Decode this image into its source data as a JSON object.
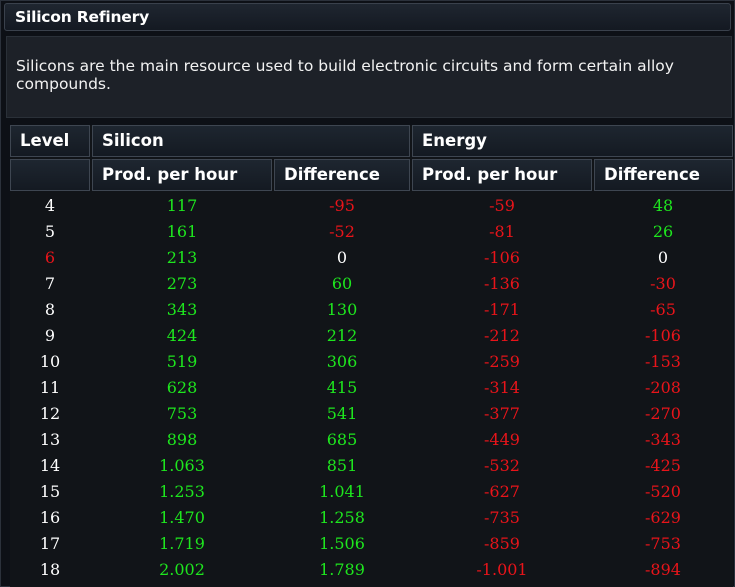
{
  "window": {
    "title": "Silicon Refinery"
  },
  "description": "Silicons are the main resource used to build electronic circuits and form certain alloy compounds.",
  "colors": {
    "positive": "#1ee61e",
    "negative": "#e8141a",
    "neutral": "#ffffff",
    "current_level": "#e8141a"
  },
  "table": {
    "group_headers": {
      "level": "Level",
      "silicon": "Silicon",
      "energy": "Energy"
    },
    "sub_headers": {
      "silicon_prod": "Prod. per hour",
      "silicon_diff": "Difference",
      "energy_prod": "Prod. per hour",
      "energy_diff": "Difference"
    },
    "current_level": "6",
    "rows": [
      {
        "level": "4",
        "silicon_prod": "117",
        "silicon_diff": "-95",
        "energy_prod": "-59",
        "energy_diff": "48"
      },
      {
        "level": "5",
        "silicon_prod": "161",
        "silicon_diff": "-52",
        "energy_prod": "-81",
        "energy_diff": "26"
      },
      {
        "level": "6",
        "silicon_prod": "213",
        "silicon_diff": "0",
        "energy_prod": "-106",
        "energy_diff": "0"
      },
      {
        "level": "7",
        "silicon_prod": "273",
        "silicon_diff": "60",
        "energy_prod": "-136",
        "energy_diff": "-30"
      },
      {
        "level": "8",
        "silicon_prod": "343",
        "silicon_diff": "130",
        "energy_prod": "-171",
        "energy_diff": "-65"
      },
      {
        "level": "9",
        "silicon_prod": "424",
        "silicon_diff": "212",
        "energy_prod": "-212",
        "energy_diff": "-106"
      },
      {
        "level": "10",
        "silicon_prod": "519",
        "silicon_diff": "306",
        "energy_prod": "-259",
        "energy_diff": "-153"
      },
      {
        "level": "11",
        "silicon_prod": "628",
        "silicon_diff": "415",
        "energy_prod": "-314",
        "energy_diff": "-208"
      },
      {
        "level": "12",
        "silicon_prod": "753",
        "silicon_diff": "541",
        "energy_prod": "-377",
        "energy_diff": "-270"
      },
      {
        "level": "13",
        "silicon_prod": "898",
        "silicon_diff": "685",
        "energy_prod": "-449",
        "energy_diff": "-343"
      },
      {
        "level": "14",
        "silicon_prod": "1.063",
        "silicon_diff": "851",
        "energy_prod": "-532",
        "energy_diff": "-425"
      },
      {
        "level": "15",
        "silicon_prod": "1.253",
        "silicon_diff": "1.041",
        "energy_prod": "-627",
        "energy_diff": "-520"
      },
      {
        "level": "16",
        "silicon_prod": "1.470",
        "silicon_diff": "1.258",
        "energy_prod": "-735",
        "energy_diff": "-629"
      },
      {
        "level": "17",
        "silicon_prod": "1.719",
        "silicon_diff": "1.506",
        "energy_prod": "-859",
        "energy_diff": "-753"
      },
      {
        "level": "18",
        "silicon_prod": "2.002",
        "silicon_diff": "1.789",
        "energy_prod": "-1.001",
        "energy_diff": "-894"
      }
    ]
  }
}
